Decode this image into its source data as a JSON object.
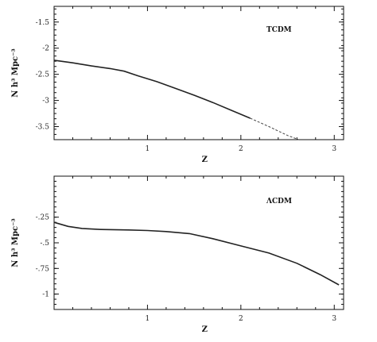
{
  "chart_data": [
    {
      "type": "line",
      "label": "TCDM",
      "xlabel": "Z",
      "ylabel": "N h³ Mpc⁻³",
      "xlim": [
        0,
        3.1
      ],
      "ylim": [
        -3.75,
        -1.2
      ],
      "xticks": [
        1,
        2,
        3
      ],
      "xtick_labels": [
        "1",
        "2",
        "3"
      ],
      "yticks": [
        -1.5,
        -2,
        -2.5,
        -3,
        -3.5
      ],
      "ytick_labels": [
        "-1.5",
        "-2",
        "-2.5",
        "-3",
        "-3.5"
      ],
      "series": [
        {
          "style": "solid",
          "x": [
            0.0,
            0.2,
            0.4,
            0.6,
            0.75,
            0.9,
            1.1,
            1.3,
            1.5,
            1.7,
            1.9,
            2.1
          ],
          "y": [
            -2.23,
            -2.28,
            -2.34,
            -2.39,
            -2.44,
            -2.53,
            -2.64,
            -2.77,
            -2.9,
            -3.04,
            -3.19,
            -3.34
          ]
        },
        {
          "style": "dashed",
          "x": [
            2.1,
            2.3,
            2.5,
            2.62
          ],
          "y": [
            -3.34,
            -3.5,
            -3.67,
            -3.75
          ]
        }
      ]
    },
    {
      "type": "line",
      "label": "ΛCDM",
      "xlabel": "Z",
      "ylabel": "N h³ Mpc⁻³",
      "xlim": [
        0,
        3.1
      ],
      "ylim": [
        -1.15,
        0.15
      ],
      "xticks": [
        1,
        2,
        3
      ],
      "xtick_labels": [
        "1",
        "2",
        "3"
      ],
      "yticks": [
        -0.25,
        -0.5,
        -0.75,
        -1
      ],
      "ytick_labels": [
        "-.25",
        "-.5",
        "-.75",
        "-1"
      ],
      "series": [
        {
          "style": "solid",
          "x": [
            0.0,
            0.15,
            0.3,
            0.5,
            0.8,
            1.0,
            1.2,
            1.45,
            1.7,
            2.0,
            2.3,
            2.6,
            2.85,
            3.05
          ],
          "y": [
            -0.3,
            -0.34,
            -0.36,
            -0.37,
            -0.375,
            -0.38,
            -0.39,
            -0.41,
            -0.46,
            -0.53,
            -0.6,
            -0.7,
            -0.81,
            -0.91
          ]
        }
      ]
    }
  ]
}
